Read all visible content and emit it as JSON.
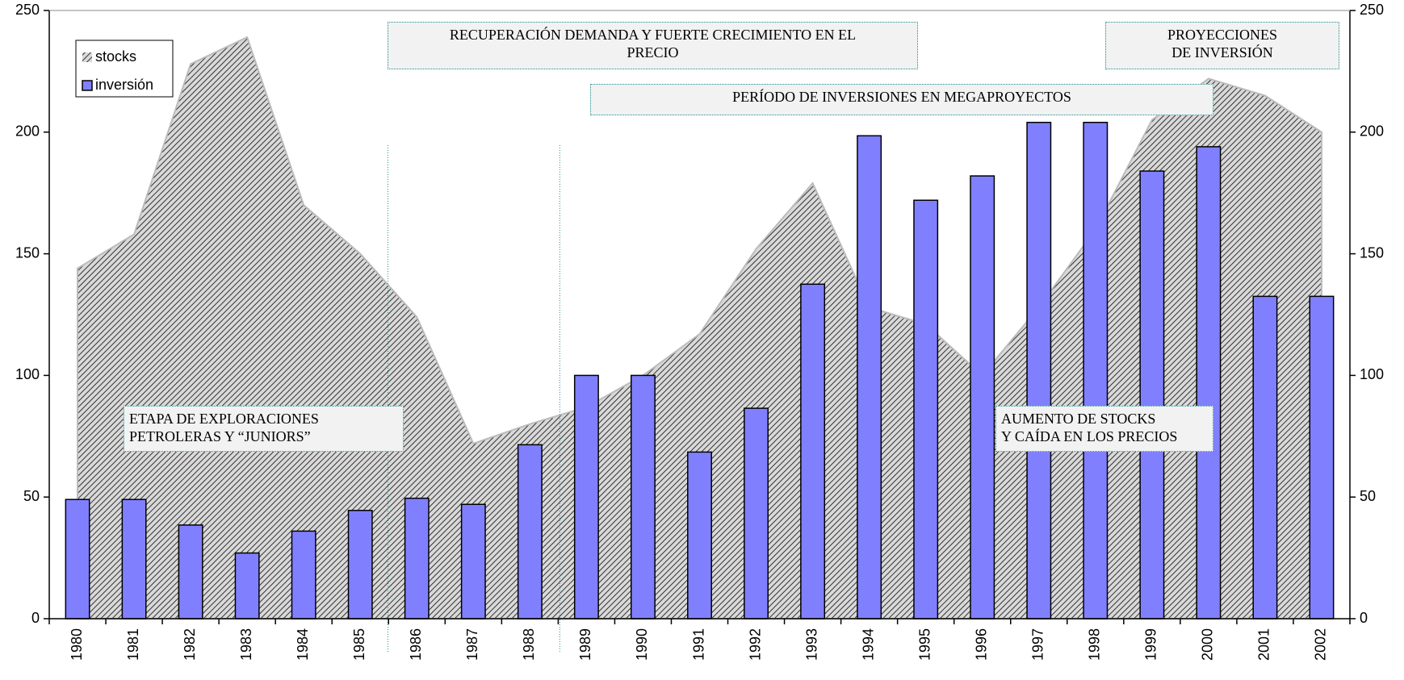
{
  "chart_data": {
    "type": "bar",
    "categories": [
      "1980",
      "1981",
      "1982",
      "1983",
      "1984",
      "1985",
      "1986",
      "1987",
      "1988",
      "1989",
      "1990",
      "1991",
      "1992",
      "1993",
      "1994",
      "1995",
      "1996",
      "1997",
      "1998",
      "1999",
      "2000",
      "2001",
      "2002"
    ],
    "series": [
      {
        "name": "stocks",
        "type": "area",
        "color": "#333333",
        "values": [
          144,
          158,
          228,
          239,
          170,
          150,
          124,
          72,
          80,
          87,
          100,
          117,
          152,
          179,
          128,
          121,
          100,
          128,
          160,
          205,
          222,
          215,
          200
        ]
      },
      {
        "name": "inversión",
        "type": "bar",
        "color": "#8080ff",
        "values": [
          49,
          49,
          38.5,
          27,
          36,
          44.5,
          49.5,
          47,
          71.5,
          100,
          100,
          68.5,
          86.5,
          137.5,
          198.5,
          172,
          182,
          204,
          204,
          184,
          194,
          132.5,
          132.5
        ]
      }
    ],
    "ylim": [
      0,
      250
    ],
    "yticks": [
      0,
      50,
      100,
      150,
      200,
      250
    ],
    "y2lim": [
      0,
      250
    ],
    "y2ticks": [
      0,
      50,
      100,
      150,
      200,
      250
    ],
    "grid": false,
    "legend": "top-left",
    "annotations": [
      {
        "lines": [
          "RECUPERACIÓN DEMANDA Y FUERTE CRECIMIENTO EN EL",
          "PRECIO"
        ]
      },
      {
        "lines": [
          "PROYECCIONES",
          "DE INVERSIÓN"
        ]
      },
      {
        "lines": [
          "PERÍODO DE INVERSIONES EN MEGAPROYECTOS"
        ]
      },
      {
        "lines": [
          "ETAPA DE EXPLORACIONES",
          "PETROLERAS Y “JUNIORS”"
        ]
      },
      {
        "lines": [
          "AUMENTO DE STOCKS",
          "Y CAÍDA EN LOS PRECIOS"
        ]
      }
    ]
  }
}
